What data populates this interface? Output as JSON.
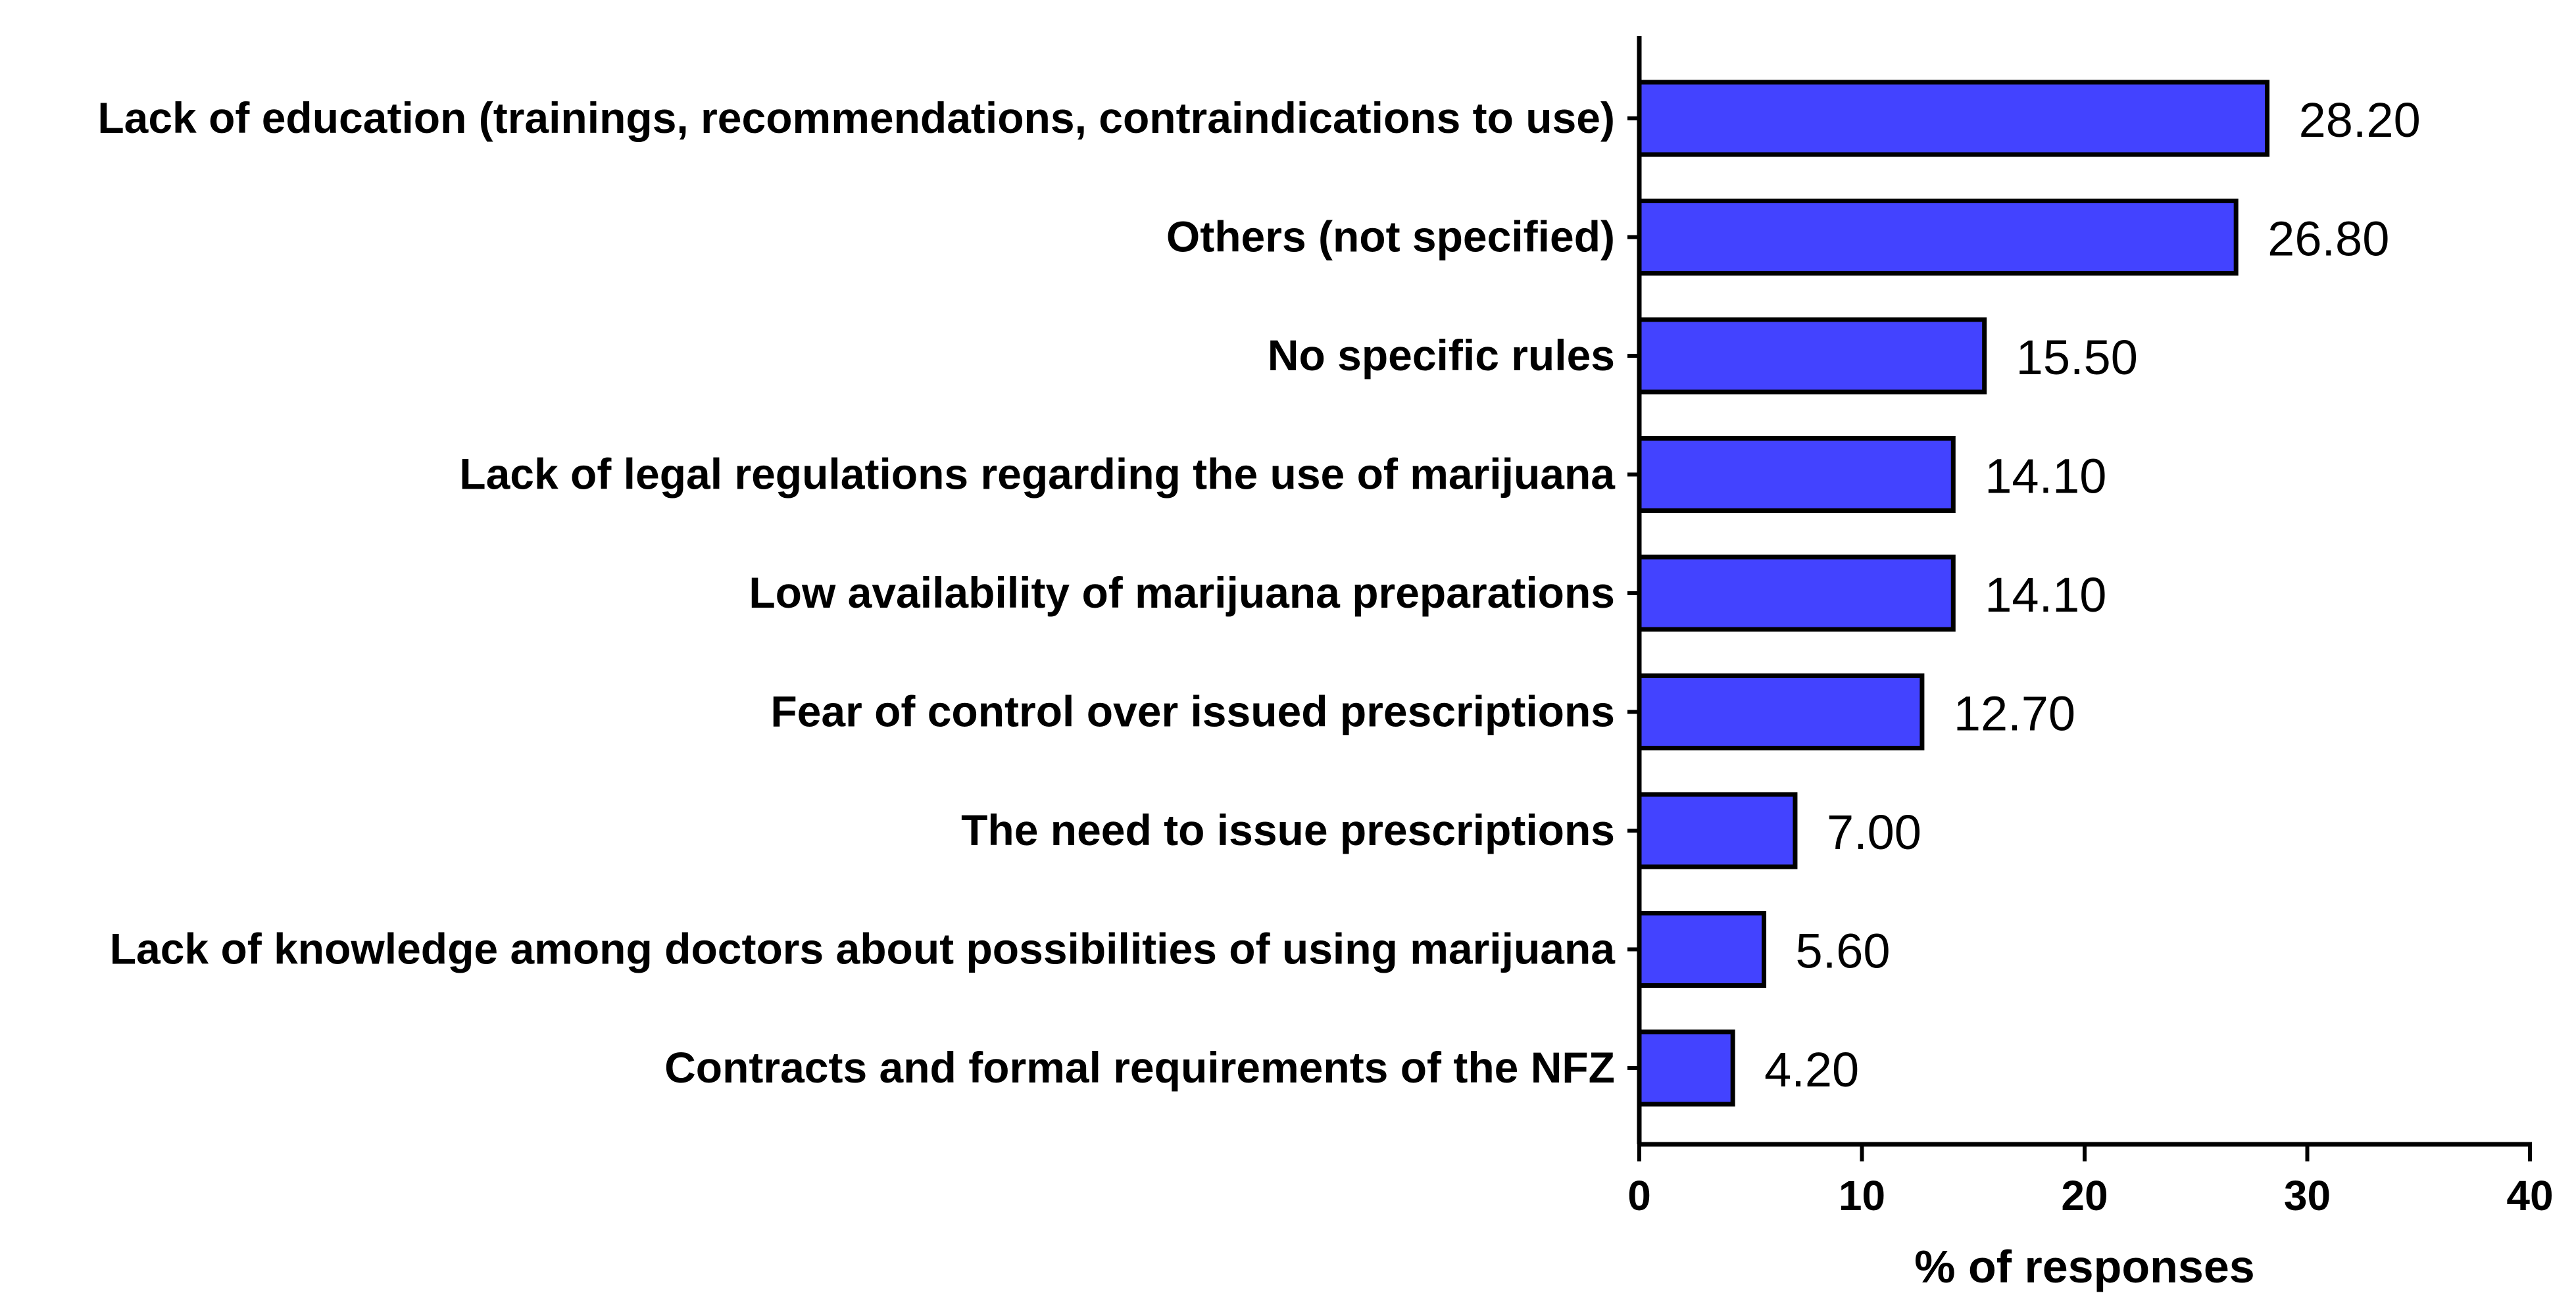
{
  "chart_data": {
    "type": "bar",
    "orientation": "horizontal",
    "categories": [
      "Lack of education (trainings, recommendations, contraindications to use)",
      "Others (not specified)",
      "No specific rules",
      "Lack of legal regulations regarding the use of marijuana",
      "Low availability of marijuana preparations",
      "Fear of control over issued prescriptions",
      "The need to issue prescriptions",
      "Lack of knowledge among doctors about possibilities of using marijuana",
      "Contracts and formal requirements of the NFZ"
    ],
    "values": [
      28.2,
      26.8,
      15.5,
      14.1,
      14.1,
      12.7,
      7.0,
      5.6,
      4.2
    ],
    "value_labels": [
      "28.20",
      "26.80",
      "15.50",
      "14.10",
      "14.10",
      "12.70",
      "7.00",
      "5.60",
      "4.20"
    ],
    "xlabel": "% of responses",
    "ylabel": "",
    "xlim": [
      0,
      40
    ],
    "xticks": [
      0,
      10,
      20,
      30,
      40
    ],
    "xtick_labels": [
      "0",
      "10",
      "20",
      "30",
      "40"
    ],
    "grid": false,
    "legend": "none",
    "bar_color": "#4343ff",
    "bar_edge_color": "#000000"
  }
}
